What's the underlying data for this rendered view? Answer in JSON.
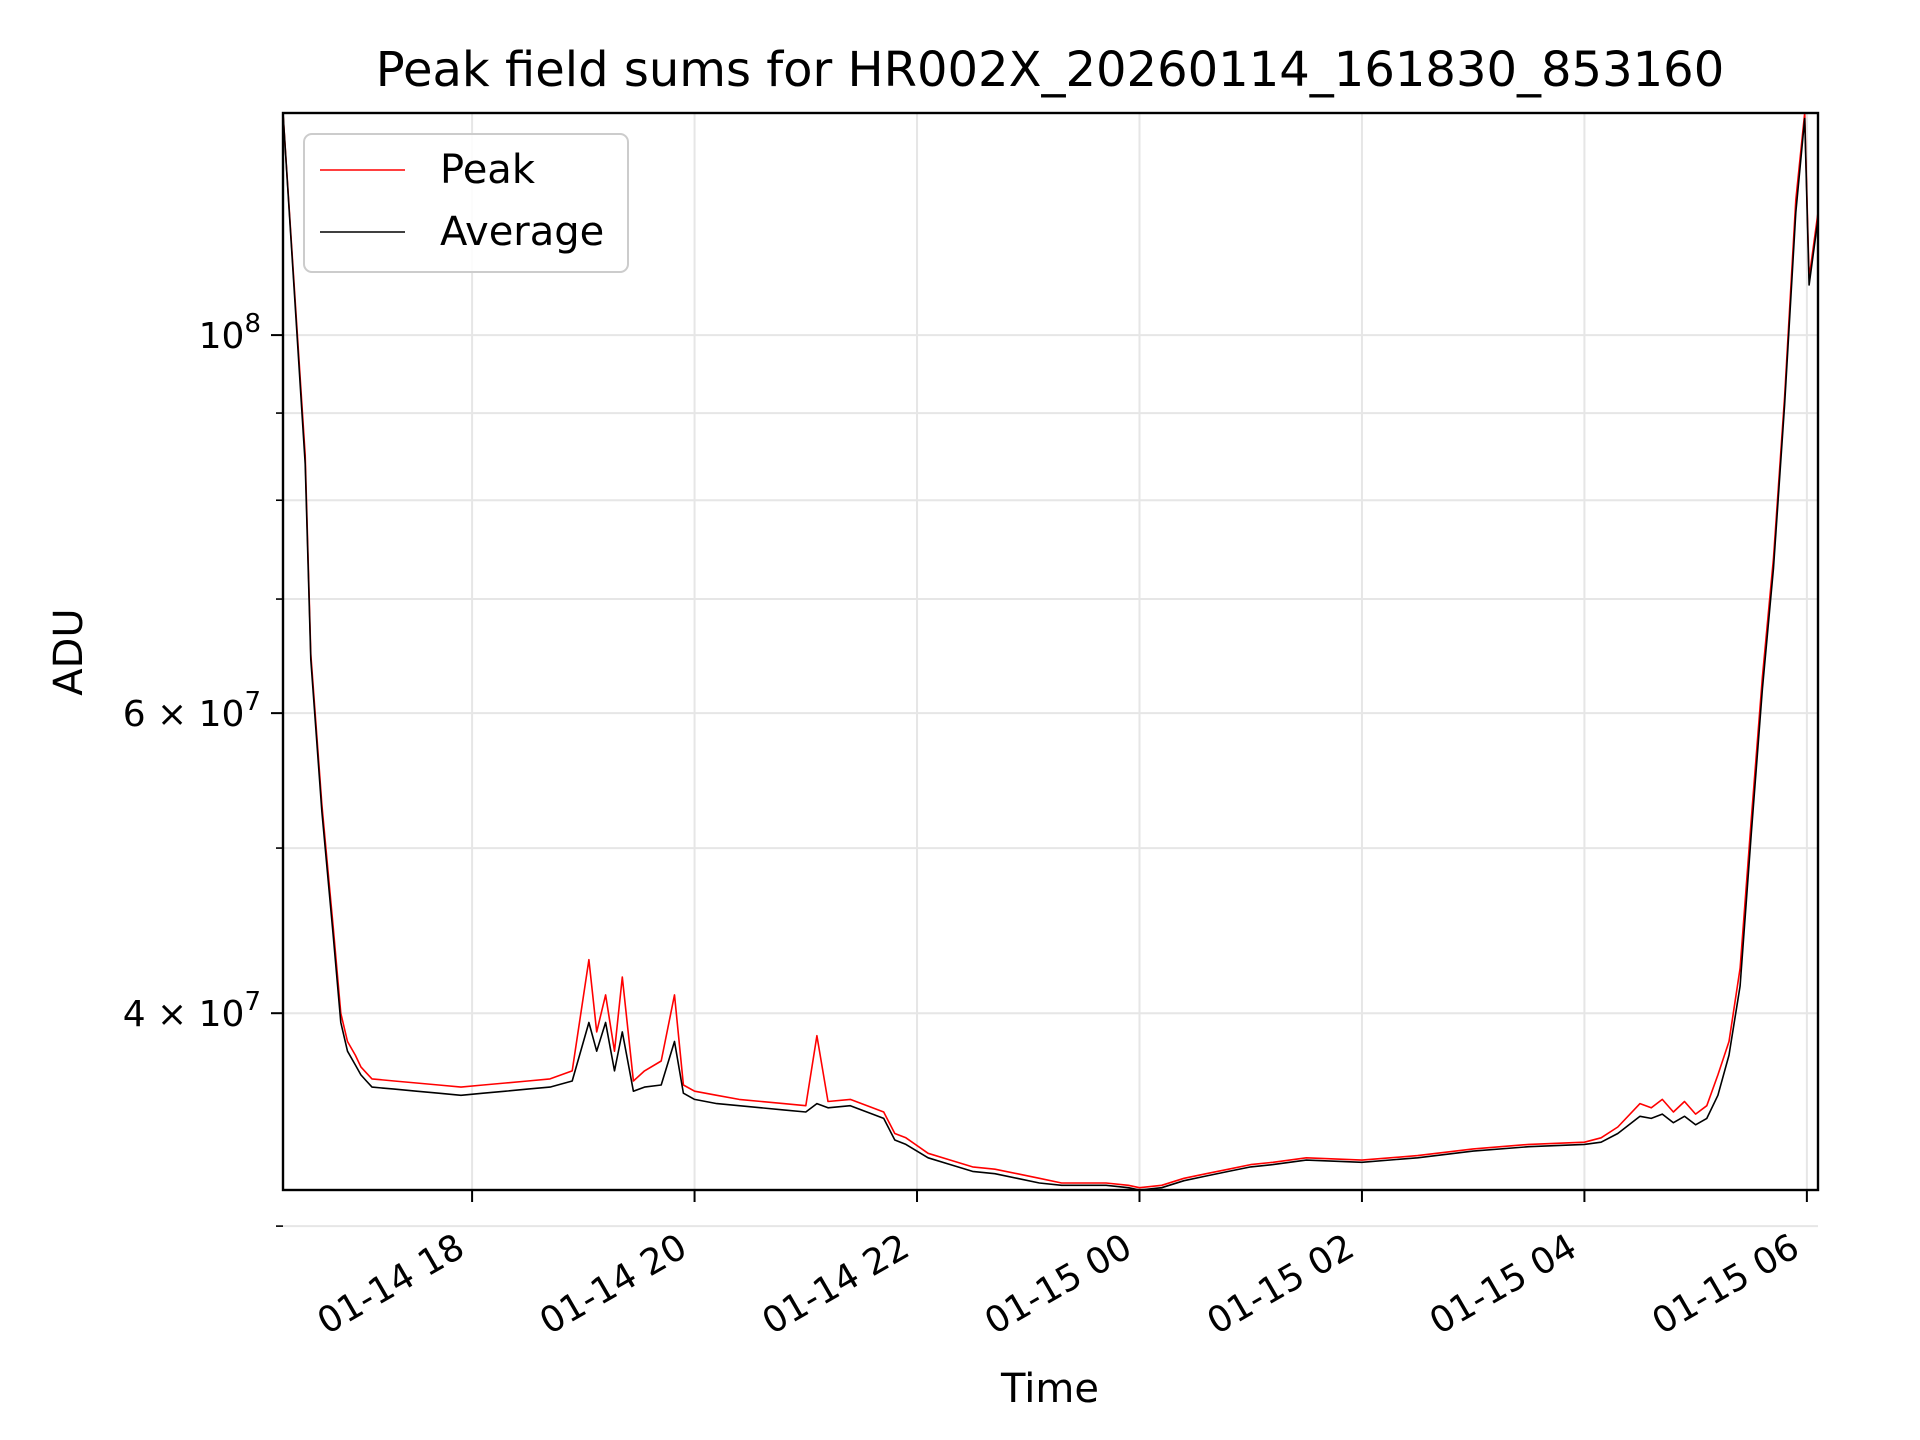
{
  "chart_data": {
    "type": "line",
    "title": "Peak field sums for HR002X_20260114_161830_853160",
    "xlabel": "Time",
    "ylabel": "ADU",
    "yscale": "log",
    "ylim": [
      31500000,
      135000000
    ],
    "xlim_hours": [
      16.3,
      30.1
    ],
    "grid": true,
    "legend_position": "top-left",
    "x_ticks": [
      {
        "hour": 18,
        "label": "01-14 18"
      },
      {
        "hour": 20,
        "label": "01-14 20"
      },
      {
        "hour": 22,
        "label": "01-14 22"
      },
      {
        "hour": 24,
        "label": "01-15 00"
      },
      {
        "hour": 26,
        "label": "01-15 02"
      },
      {
        "hour": 28,
        "label": "01-15 04"
      },
      {
        "hour": 30,
        "label": "01-15 06"
      }
    ],
    "y_ticks": [
      {
        "value": 100000000,
        "mantissa": "10",
        "exponent": "8",
        "times": ""
      },
      {
        "value": 60000000,
        "mantissa": "6",
        "exponent": "7",
        "times": "× 10"
      },
      {
        "value": 40000000,
        "mantissa": "4",
        "exponent": "7",
        "times": "× 10"
      }
    ],
    "y_minor_ticks": [
      30000000,
      50000000,
      70000000,
      80000000,
      90000000
    ],
    "series": [
      {
        "name": "Peak",
        "color": "#ff0000",
        "x": [
          16.3,
          16.5,
          16.55,
          16.65,
          16.75,
          16.82,
          16.88,
          16.95,
          17.0,
          17.05,
          17.1,
          17.3,
          17.5,
          17.7,
          17.9,
          18.1,
          18.3,
          18.5,
          18.7,
          18.9,
          19.05,
          19.12,
          19.2,
          19.28,
          19.35,
          19.45,
          19.55,
          19.7,
          19.82,
          19.9,
          20.0,
          20.2,
          20.4,
          20.6,
          20.8,
          21.0,
          21.1,
          21.2,
          21.4,
          21.6,
          21.7,
          21.8,
          21.9,
          22.1,
          22.3,
          22.5,
          22.7,
          22.9,
          23.1,
          23.3,
          23.5,
          23.7,
          23.9,
          24.0,
          24.2,
          24.4,
          24.6,
          24.8,
          25.0,
          25.2,
          25.5,
          26.0,
          26.5,
          27.0,
          27.5,
          28.0,
          28.15,
          28.3,
          28.5,
          28.6,
          28.7,
          28.8,
          28.9,
          29.0,
          29.1,
          29.2,
          29.3,
          29.4,
          29.5,
          29.6,
          29.7,
          29.8,
          29.9,
          29.98,
          30.02,
          30.1
        ],
        "y": [
          135000000,
          85000000,
          65000000,
          53000000,
          45000000,
          40000000,
          38500000,
          37800000,
          37200000,
          36900000,
          36600000,
          36500000,
          36400000,
          36300000,
          36200000,
          36300000,
          36400000,
          36500000,
          36600000,
          37000000,
          43000000,
          39000000,
          41000000,
          38000000,
          42000000,
          36500000,
          37000000,
          37500000,
          41000000,
          36300000,
          36000000,
          35800000,
          35600000,
          35500000,
          35400000,
          35300000,
          38800000,
          35500000,
          35600000,
          35200000,
          35000000,
          34000000,
          33800000,
          33100000,
          32800000,
          32500000,
          32400000,
          32200000,
          32000000,
          31800000,
          31800000,
          31800000,
          31700000,
          31600000,
          31700000,
          32000000,
          32200000,
          32400000,
          32600000,
          32700000,
          32900000,
          32800000,
          33000000,
          33300000,
          33500000,
          33600000,
          33800000,
          34300000,
          35400000,
          35200000,
          35600000,
          35000000,
          35500000,
          34900000,
          35300000,
          36800000,
          38500000,
          42500000,
          52000000,
          63000000,
          74000000,
          92000000,
          120000000,
          135000000,
          108000000,
          118000000
        ]
      },
      {
        "name": "Average",
        "color": "#000000",
        "x": [
          16.3,
          16.5,
          16.55,
          16.65,
          16.75,
          16.82,
          16.88,
          16.95,
          17.0,
          17.05,
          17.1,
          17.3,
          17.5,
          17.7,
          17.9,
          18.1,
          18.3,
          18.5,
          18.7,
          18.9,
          19.05,
          19.12,
          19.2,
          19.28,
          19.35,
          19.45,
          19.55,
          19.7,
          19.82,
          19.9,
          20.0,
          20.2,
          20.4,
          20.6,
          20.8,
          21.0,
          21.1,
          21.2,
          21.4,
          21.6,
          21.7,
          21.8,
          21.9,
          22.1,
          22.3,
          22.5,
          22.7,
          22.9,
          23.1,
          23.3,
          23.5,
          23.7,
          23.9,
          24.0,
          24.2,
          24.4,
          24.6,
          24.8,
          25.0,
          25.2,
          25.5,
          26.0,
          26.5,
          27.0,
          27.5,
          28.0,
          28.15,
          28.3,
          28.5,
          28.6,
          28.7,
          28.8,
          28.9,
          29.0,
          29.1,
          29.2,
          29.3,
          29.4,
          29.5,
          29.6,
          29.7,
          29.8,
          29.9,
          29.98,
          30.02,
          30.1
        ],
        "y": [
          135000000,
          84000000,
          64500000,
          52500000,
          44500000,
          39500000,
          38000000,
          37300000,
          36800000,
          36500000,
          36200000,
          36100000,
          36000000,
          35900000,
          35800000,
          35900000,
          36000000,
          36100000,
          36200000,
          36500000,
          39500000,
          38000000,
          39500000,
          37000000,
          39000000,
          36000000,
          36200000,
          36300000,
          38500000,
          35900000,
          35600000,
          35400000,
          35300000,
          35200000,
          35100000,
          35000000,
          35400000,
          35200000,
          35300000,
          34900000,
          34700000,
          33700000,
          33500000,
          32900000,
          32600000,
          32300000,
          32200000,
          32000000,
          31800000,
          31700000,
          31700000,
          31700000,
          31600000,
          31500000,
          31600000,
          31900000,
          32100000,
          32300000,
          32500000,
          32600000,
          32800000,
          32700000,
          32900000,
          33200000,
          33400000,
          33500000,
          33600000,
          34000000,
          34800000,
          34700000,
          34900000,
          34500000,
          34800000,
          34400000,
          34700000,
          35800000,
          37800000,
          41500000,
          51000000,
          62000000,
          73000000,
          91000000,
          118000000,
          134000000,
          107000000,
          117000000
        ]
      }
    ]
  }
}
